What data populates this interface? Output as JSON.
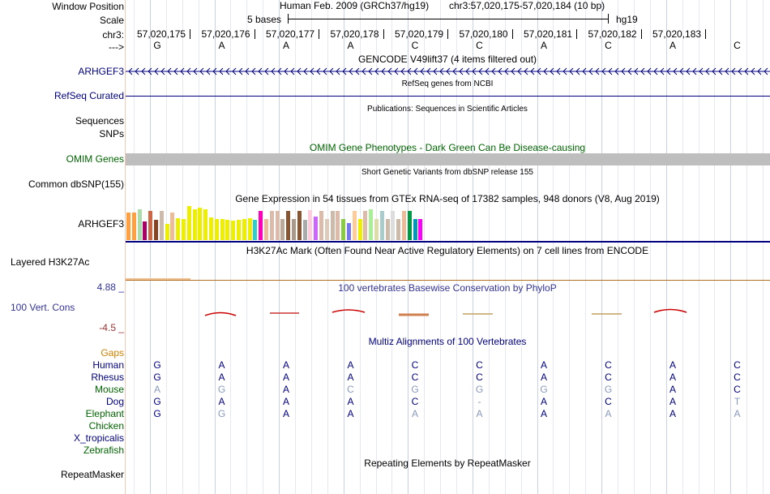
{
  "header": {
    "window_position_label": "Window Position",
    "scale_label": "Scale",
    "chr_label": "chr3:",
    "arrow_label": "--->",
    "assembly_text": "Human Feb. 2009 (GRCh37/hg19)",
    "position_text": "chr3:57,020,175-57,020,184 (10 bp)",
    "scale_text": "5 bases",
    "db_text": "hg19",
    "coordinates": [
      "57,020,175",
      "57,020,176",
      "57,020,177",
      "57,020,178",
      "57,020,179",
      "57,020,180",
      "57,020,181",
      "57,020,182",
      "57,020,183"
    ],
    "bases": [
      "G",
      "A",
      "A",
      "A",
      "C",
      "C",
      "A",
      "C",
      "A",
      "C"
    ]
  },
  "tracks": {
    "gencode_title": "GENCODE V49lift37 (4 items filtered out)",
    "gencode_gene": "ARHGEF3",
    "refseq_title": "RefSeq genes from NCBI",
    "refseq_label": "RefSeq Curated",
    "pubs_title": "Publications: Sequences in Scientific Articles",
    "sequences_label": "Sequences",
    "snps_label": "SNPs",
    "omim_title": "OMIM Gene Phenotypes - Dark Green Can Be Disease-causing",
    "omim_label": "OMIM Genes",
    "dbsnp_title": "Short Genetic Variants from dbSNP release 155",
    "dbsnp_label": "Common dbSNP(155)",
    "gtex_title": "Gene Expression in 54 tissues from GTEx RNA-seq of 17382 samples, 948 donors (V8, Aug 2019)",
    "gtex_label": "ARHGEF3",
    "h3k27_title": "H3K27Ac Mark (Often Found Near Active Regulatory Elements) on 7 cell lines from ENCODE",
    "h3k27_label": "Layered H3K27Ac",
    "cons_title": "100 vertebrates Basewise Conservation by PhyloP",
    "cons_label": "100 Vert. Cons",
    "cons_max": "4.88 _",
    "cons_min": "-4.5 _",
    "multiz_title": "Multiz Alignments of 100 Vertebrates",
    "gaps_label": "Gaps",
    "repeat_title": "Repeating Elements by RepeatMasker",
    "repeat_label": "RepeatMasker"
  },
  "gtex_bars": [
    {
      "v": 0.82,
      "c": "#ff9f40"
    },
    {
      "v": 0.82,
      "c": "#ff9f40"
    },
    {
      "v": 0.9,
      "c": "#aaddaa"
    },
    {
      "v": 0.55,
      "c": "#aa0066"
    },
    {
      "v": 0.85,
      "c": "#cc6644"
    },
    {
      "v": 0.6,
      "c": "#884422"
    },
    {
      "v": 0.85,
      "c": "#ccbbaa"
    },
    {
      "v": 0.48,
      "c": "#eeee00"
    },
    {
      "v": 0.8,
      "c": "#eebb99"
    },
    {
      "v": 0.65,
      "c": "#eeee00"
    },
    {
      "v": 0.62,
      "c": "#eeee00"
    },
    {
      "v": 1.0,
      "c": "#eeee00"
    },
    {
      "v": 0.9,
      "c": "#eeee00"
    },
    {
      "v": 0.95,
      "c": "#eeee00"
    },
    {
      "v": 0.9,
      "c": "#eeee00"
    },
    {
      "v": 0.67,
      "c": "#eeee00"
    },
    {
      "v": 0.62,
      "c": "#eeee00"
    },
    {
      "v": 0.62,
      "c": "#eeee00"
    },
    {
      "v": 0.6,
      "c": "#eeee00"
    },
    {
      "v": 0.57,
      "c": "#eeee00"
    },
    {
      "v": 0.6,
      "c": "#eeee00"
    },
    {
      "v": 0.62,
      "c": "#eeee00"
    },
    {
      "v": 0.65,
      "c": "#eeee00"
    },
    {
      "v": 0.6,
      "c": "#33cccc"
    },
    {
      "v": 0.85,
      "c": "#ff00bb"
    },
    {
      "v": 0.62,
      "c": "#eebb99"
    },
    {
      "v": 0.85,
      "c": "#ddbbaa"
    },
    {
      "v": 0.85,
      "c": "#ddbbaa"
    },
    {
      "v": 0.62,
      "c": "#bbaa99"
    },
    {
      "v": 0.85,
      "c": "#885533"
    },
    {
      "v": 0.62,
      "c": "#aa9988"
    },
    {
      "v": 0.85,
      "c": "#885533"
    },
    {
      "v": 0.6,
      "c": "#aaaaaa"
    },
    {
      "v": 0.87,
      "c": "#ffccdd"
    },
    {
      "v": 0.7,
      "c": "#cc66ff"
    },
    {
      "v": 0.85,
      "c": "#ddbbaa"
    },
    {
      "v": 0.62,
      "c": "#ddccbb"
    },
    {
      "v": 0.85,
      "c": "#ccbbaa"
    },
    {
      "v": 0.85,
      "c": "#ddbbaa"
    },
    {
      "v": 0.62,
      "c": "#88cc44"
    },
    {
      "v": 0.5,
      "c": "#7777ee"
    },
    {
      "v": 0.85,
      "c": "#ffcc99"
    },
    {
      "v": 0.62,
      "c": "#eeee00"
    },
    {
      "v": 0.85,
      "c": "#ddbbaa"
    },
    {
      "v": 0.9,
      "c": "#aaee99"
    },
    {
      "v": 0.62,
      "c": "#ddddaa"
    },
    {
      "v": 0.85,
      "c": "#aacccc"
    },
    {
      "v": 0.62,
      "c": "#ccbbaa"
    },
    {
      "v": 0.85,
      "c": "#dddddd"
    },
    {
      "v": 0.62,
      "c": "#ccbbaa"
    },
    {
      "v": 0.85,
      "c": "#eebb99"
    },
    {
      "v": 0.85,
      "c": "#009944"
    },
    {
      "v": 0.62,
      "c": "#0099bb"
    },
    {
      "v": 0.62,
      "c": "#ff00ff"
    }
  ],
  "alignments": [
    {
      "species": "Human",
      "color": "#000080",
      "bases": [
        "G",
        "A",
        "A",
        "A",
        "C",
        "C",
        "A",
        "C",
        "A",
        "C"
      ],
      "faded": [
        false,
        false,
        false,
        false,
        false,
        false,
        false,
        false,
        false,
        false
      ]
    },
    {
      "species": "Rhesus",
      "color": "#000080",
      "bases": [
        "G",
        "A",
        "A",
        "A",
        "C",
        "C",
        "A",
        "C",
        "A",
        "C"
      ],
      "faded": [
        false,
        false,
        false,
        false,
        false,
        false,
        false,
        false,
        false,
        false
      ]
    },
    {
      "species": "Mouse",
      "color": "#006400",
      "bases": [
        "A",
        "G",
        "A",
        "C",
        "G",
        "G",
        "G",
        "G",
        "A",
        "C"
      ],
      "faded": [
        true,
        true,
        false,
        true,
        true,
        true,
        true,
        true,
        false,
        false
      ]
    },
    {
      "species": "Dog",
      "color": "#000080",
      "bases": [
        "G",
        "A",
        "A",
        "A",
        "C",
        "-",
        "A",
        "C",
        "A",
        "T"
      ],
      "faded": [
        false,
        false,
        false,
        false,
        false,
        true,
        false,
        false,
        false,
        true
      ]
    },
    {
      "species": "Elephant",
      "color": "#006400",
      "bases": [
        "G",
        "G",
        "A",
        "A",
        "A",
        "A",
        "A",
        "A",
        "A",
        "A"
      ],
      "faded": [
        false,
        true,
        false,
        false,
        true,
        true,
        false,
        true,
        false,
        true
      ]
    },
    {
      "species": "Chicken",
      "color": "#006400",
      "bases": [],
      "faded": []
    },
    {
      "species": "X_tropicalis",
      "color": "#000080",
      "bases": [],
      "faded": []
    },
    {
      "species": "Zebrafish",
      "color": "#006400",
      "bases": [],
      "faded": []
    }
  ]
}
